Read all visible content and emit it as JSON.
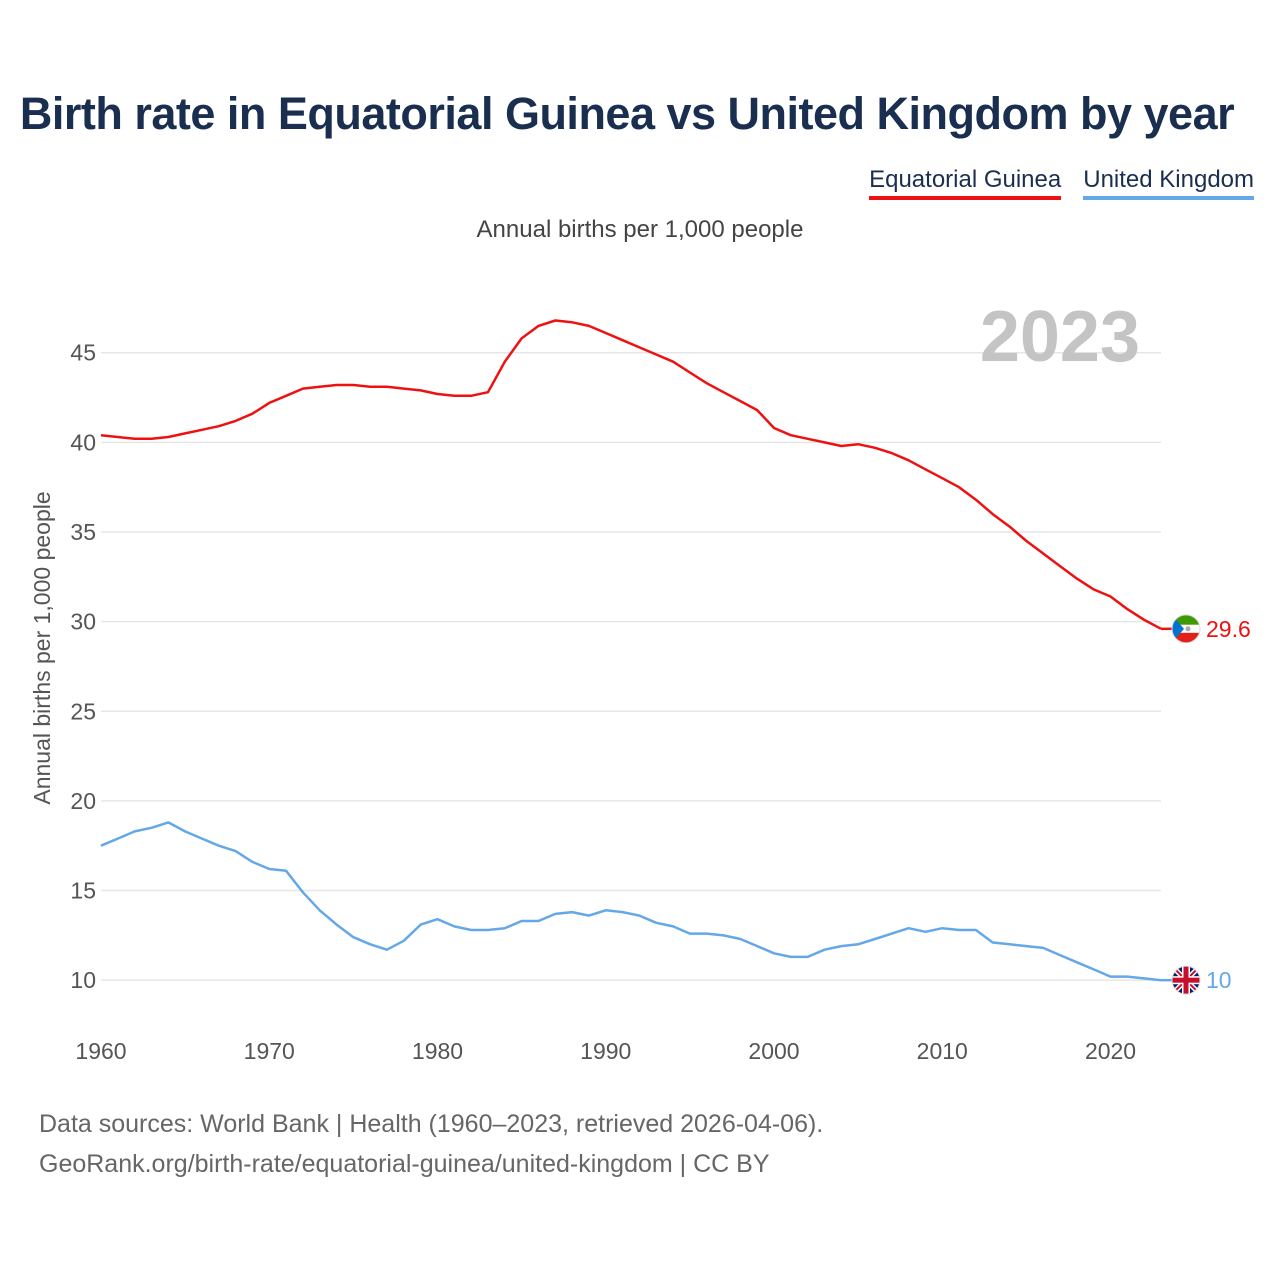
{
  "title": "Birth rate in Equatorial Guinea vs United Kingdom by year",
  "subtitle": "Annual births per 1,000 people",
  "legend": [
    {
      "label": "Equatorial Guinea",
      "color": "#ee1111"
    },
    {
      "label": "United Kingdom",
      "color": "#64a8e8"
    }
  ],
  "footer": {
    "line1": "Data sources: World Bank | Health (1960–2023, retrieved 2026-04-06).",
    "line2": "GeoRank.org/birth-rate/equatorial-guinea/united-kingdom | CC BY"
  },
  "colors": {
    "grid": "#e6e6e6",
    "year": "#c4c4c4",
    "text": "#555555"
  },
  "chart_data": {
    "type": "line",
    "title": "Birth rate in Equatorial Guinea vs United Kingdom by year",
    "xlabel": "",
    "ylabel": "Annual births per 1,000 people",
    "xlim": [
      1960,
      2023
    ],
    "ylim": [
      7.5,
      48.5
    ],
    "xticks": [
      1960,
      1970,
      1980,
      1990,
      2000,
      2010,
      2020
    ],
    "yticks": [
      10,
      15,
      20,
      25,
      30,
      35,
      40,
      45
    ],
    "year_label": "2023",
    "x": [
      1960,
      1961,
      1962,
      1963,
      1964,
      1965,
      1966,
      1967,
      1968,
      1969,
      1970,
      1971,
      1972,
      1973,
      1974,
      1975,
      1976,
      1977,
      1978,
      1979,
      1980,
      1981,
      1982,
      1983,
      1984,
      1985,
      1986,
      1987,
      1988,
      1989,
      1990,
      1991,
      1992,
      1993,
      1994,
      1995,
      1996,
      1997,
      1998,
      1999,
      2000,
      2001,
      2002,
      2003,
      2004,
      2005,
      2006,
      2007,
      2008,
      2009,
      2010,
      2011,
      2012,
      2013,
      2014,
      2015,
      2016,
      2017,
      2018,
      2019,
      2020,
      2021,
      2022,
      2023
    ],
    "series": [
      {
        "name": "Equatorial Guinea",
        "color": "#ee1111",
        "end_label": "29.6",
        "values": [
          40.4,
          40.3,
          40.2,
          40.2,
          40.3,
          40.5,
          40.7,
          40.9,
          41.2,
          41.6,
          42.2,
          42.6,
          43.0,
          43.1,
          43.2,
          43.2,
          43.1,
          43.1,
          43.0,
          42.9,
          42.7,
          42.6,
          42.6,
          42.8,
          44.5,
          45.8,
          46.5,
          46.8,
          46.7,
          46.5,
          46.1,
          45.7,
          45.3,
          44.9,
          44.5,
          43.9,
          43.3,
          42.8,
          42.3,
          41.8,
          40.8,
          40.4,
          40.2,
          40.0,
          39.8,
          39.9,
          39.7,
          39.4,
          39.0,
          38.5,
          38.0,
          37.5,
          36.8,
          36.0,
          35.3,
          34.5,
          33.8,
          33.1,
          32.4,
          31.8,
          31.4,
          30.7,
          30.1,
          29.6
        ]
      },
      {
        "name": "United Kingdom",
        "color": "#64a8e8",
        "end_label": "10",
        "values": [
          17.5,
          17.9,
          18.3,
          18.5,
          18.8,
          18.3,
          17.9,
          17.5,
          17.2,
          16.6,
          16.2,
          16.1,
          14.9,
          13.9,
          13.1,
          12.4,
          12.0,
          11.7,
          12.2,
          13.1,
          13.4,
          13.0,
          12.8,
          12.8,
          12.9,
          13.3,
          13.3,
          13.7,
          13.8,
          13.6,
          13.9,
          13.8,
          13.6,
          13.2,
          13.0,
          12.6,
          12.6,
          12.5,
          12.3,
          11.9,
          11.5,
          11.3,
          11.3,
          11.7,
          11.9,
          12.0,
          12.3,
          12.6,
          12.9,
          12.7,
          12.9,
          12.8,
          12.8,
          12.1,
          12.0,
          11.9,
          11.8,
          11.4,
          11.0,
          10.6,
          10.2,
          10.2,
          10.1,
          10.0
        ]
      }
    ]
  }
}
